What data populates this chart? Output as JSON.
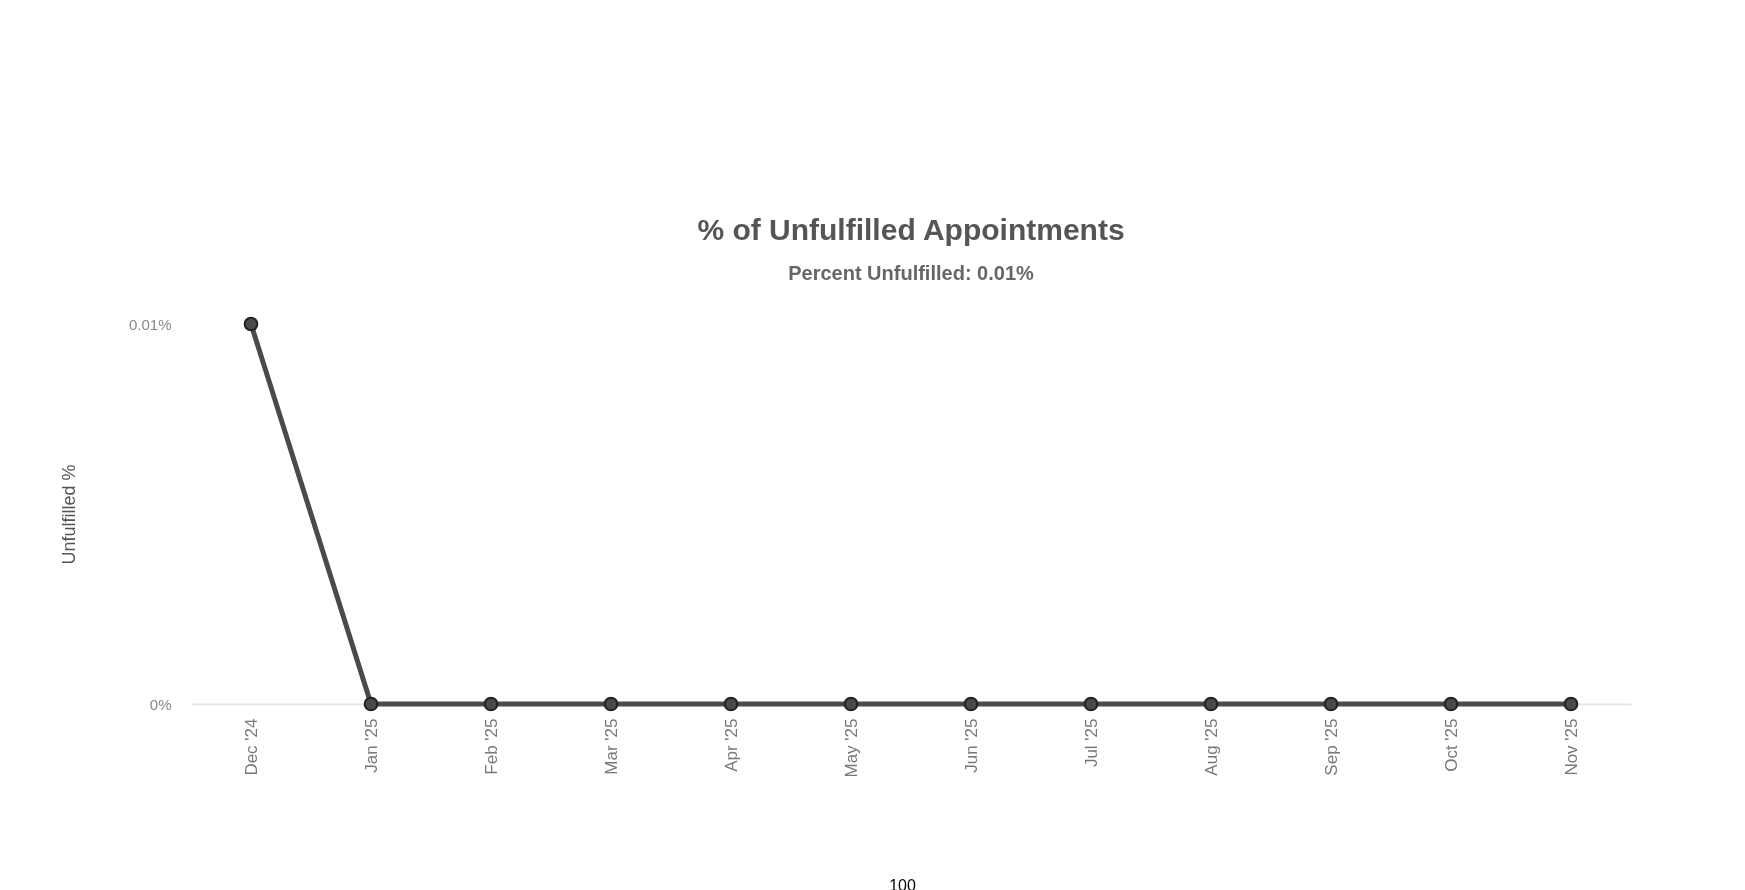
{
  "chart_data": {
    "type": "line",
    "title": "% of Unfulfilled Appointments",
    "subtitle": "Percent Unfulfilled:  0.01%",
    "ylabel": "Unfulfilled %",
    "categories": [
      "Dec '24",
      "Jan '25",
      "Feb '25",
      "Mar '25",
      "Apr '25",
      "May '25",
      "Jun '25",
      "Jul '25",
      "Aug '25",
      "Sep '25",
      "Oct '25",
      "Nov '25"
    ],
    "series": [
      {
        "color": "#4a4a4a",
        "values": [
          0.01,
          0,
          0,
          0,
          0,
          0,
          0,
          0,
          0,
          0,
          0,
          0
        ]
      }
    ],
    "ylim": [
      0,
      0.01
    ],
    "yticks": [
      {
        "value": 0,
        "label": "0%"
      },
      {
        "value": 0.01,
        "label": "0.01%"
      }
    ],
    "marker": "circle",
    "line_style": "solid",
    "annotations": [
      "100"
    ]
  }
}
